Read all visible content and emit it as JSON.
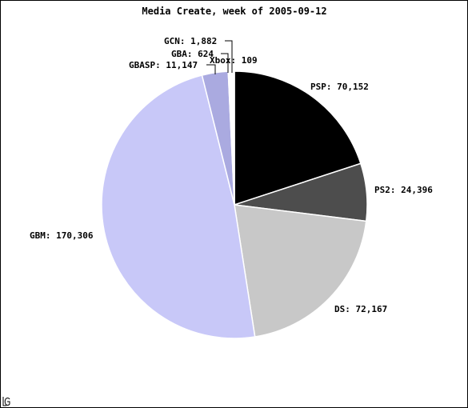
{
  "chart_data": {
    "type": "pie",
    "title": "Media Create, week of 2005-09-12",
    "slices": [
      {
        "name": "PSP",
        "value": 70152,
        "label": "PSP: 70,152",
        "color": "#000000"
      },
      {
        "name": "PS2",
        "value": 24396,
        "label": "PS2: 24,396",
        "color": "#4d4d4d"
      },
      {
        "name": "DS",
        "value": 72167,
        "label": "DS: 72,167",
        "color": "#c8c8c8"
      },
      {
        "name": "GBM",
        "value": 170306,
        "label": "GBM: 170,306",
        "color": "#c8c8f8"
      },
      {
        "name": "GBASP",
        "value": 11147,
        "label": "GBASP: 11,147",
        "color": "#aaaae0"
      },
      {
        "name": "GBA",
        "value": 624,
        "label": "GBA: 624",
        "color": "#ffffff"
      },
      {
        "name": "GCN",
        "value": 1882,
        "label": "GCN: 1,882",
        "color": "#ffffff"
      },
      {
        "name": "Xbox",
        "value": 109,
        "label": "Xbox: 109",
        "color": "#5030d8"
      }
    ],
    "start_angle": "12 o'clock",
    "direction": "clockwise",
    "legend": "none"
  },
  "corner_mark": "g-logo-icon"
}
